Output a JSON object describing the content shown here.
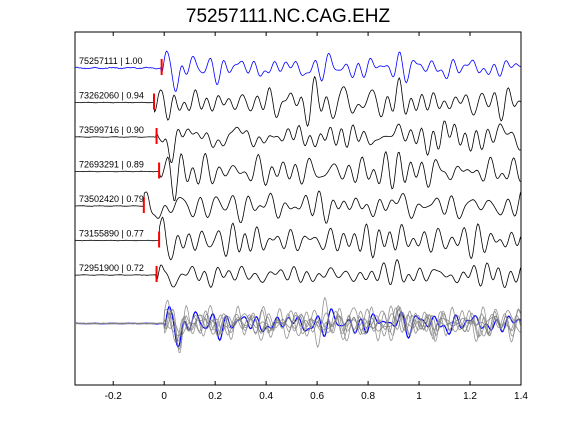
{
  "chart_data": {
    "type": "line",
    "title": "75257111.NC.CAG.EHZ",
    "xlabel": "",
    "ylabel": "",
    "xlim": [
      -0.35,
      1.4
    ],
    "xticks": [
      -0.2,
      0,
      0.2,
      0.4,
      0.6,
      0.8,
      1,
      1.2,
      1.4
    ],
    "xtick_labels": [
      "-0.2",
      "0",
      "0.2",
      "0.4",
      "0.6",
      "0.8",
      "1",
      "1.2",
      "1.4"
    ],
    "grid": false,
    "colors": {
      "reference": "#0000ff",
      "trace": "#000000",
      "stack": "#808080",
      "pick": "#ff0000"
    },
    "series": [
      {
        "name": "75257111 | 1.00",
        "pick_time": -0.01,
        "reference": true
      },
      {
        "name": "73262060 | 0.94",
        "pick_time": -0.04
      },
      {
        "name": "73599716 | 0.90",
        "pick_time": -0.03
      },
      {
        "name": "72693291 | 0.89",
        "pick_time": -0.02
      },
      {
        "name": "73502420 | 0.79",
        "pick_time": -0.08
      },
      {
        "name": "73155890 | 0.77",
        "pick_time": -0.02
      },
      {
        "name": "72951900 | 0.72",
        "pick_time": -0.03
      }
    ],
    "stack": {
      "name": "overlay",
      "count": 7
    }
  }
}
